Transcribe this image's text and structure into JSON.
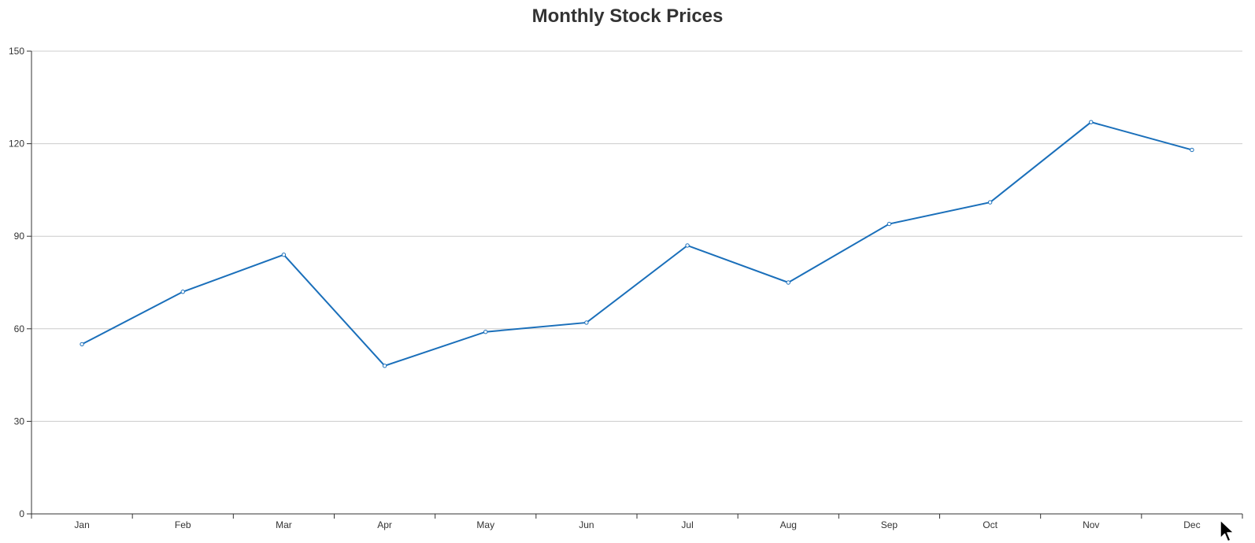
{
  "chart_data": {
    "type": "line",
    "title": "Monthly Stock Prices",
    "xlabel": "",
    "ylabel": "",
    "categories": [
      "Jan",
      "Feb",
      "Mar",
      "Apr",
      "May",
      "Jun",
      "Jul",
      "Aug",
      "Sep",
      "Oct",
      "Nov",
      "Dec"
    ],
    "series": [
      {
        "values": [
          55,
          72,
          84,
          48,
          59,
          62,
          87,
          75,
          94,
          101,
          127,
          118
        ],
        "color": "#1a6fba"
      }
    ],
    "ylim": [
      0,
      150
    ],
    "yticks": [
      0,
      30,
      60,
      90,
      120,
      150
    ],
    "grid": true,
    "legend": "none"
  },
  "cursor": {
    "icon": "mouse-pointer-icon"
  }
}
